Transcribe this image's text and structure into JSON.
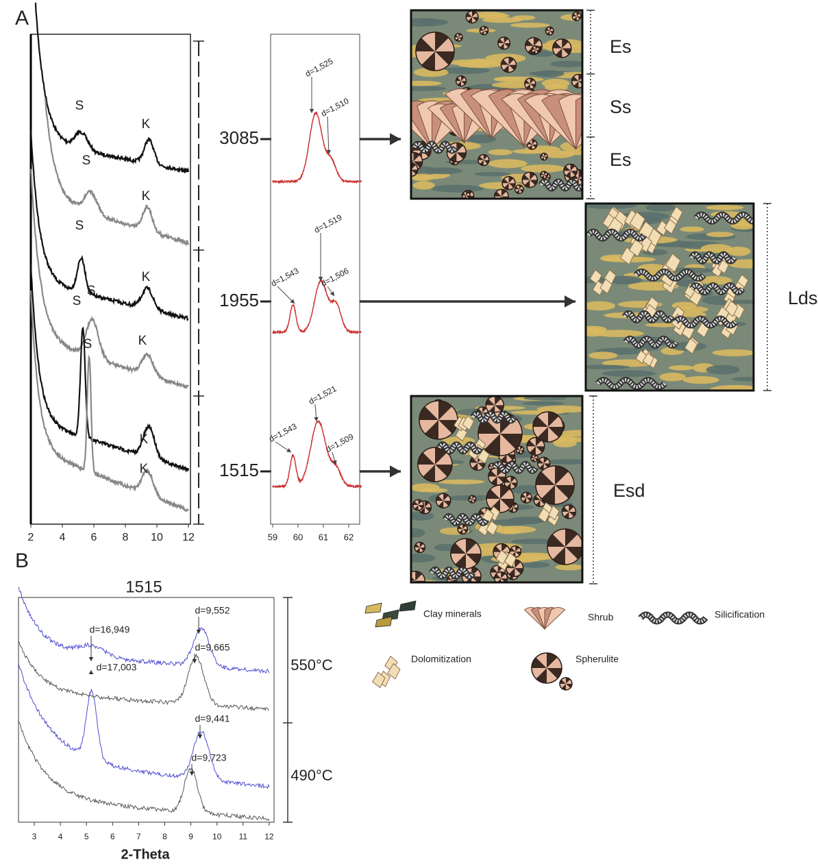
{
  "panel_a": {
    "label": "A",
    "xrd_xticks": [
      2,
      4,
      6,
      8,
      10,
      12
    ],
    "peak_labels": [
      [
        "S",
        "K"
      ],
      [
        "S",
        "K"
      ],
      [
        "S",
        "K"
      ],
      [
        "S",
        "K"
      ],
      [
        "S",
        "K"
      ],
      [
        "S",
        "K"
      ]
    ],
    "depths": [
      3085,
      1955,
      1515
    ],
    "zoom_xticks": [
      59,
      60,
      61,
      62
    ],
    "zoom_annotations": [
      [
        "d=1,525",
        "d=1,510"
      ],
      [
        "d=1,519",
        "d=1,543",
        "d=1,506"
      ],
      [
        "d=1,521",
        "d=1,543",
        "d=1,509"
      ]
    ],
    "facies": [
      [
        "Es",
        "Ss",
        "Es"
      ],
      [
        "Lds"
      ],
      [
        "Esd"
      ]
    ]
  },
  "panel_b": {
    "label": "B",
    "title": "1515",
    "xticks": [
      3,
      4,
      5,
      6,
      7,
      8,
      9,
      10,
      11,
      12
    ],
    "xlabel": "2-Theta",
    "annotations": [
      "d=16,949",
      "d=9,552",
      "d=17,003",
      "d=9,665",
      "d=9,441",
      "d=9,723"
    ],
    "temperatures": [
      "550°C",
      "490°C"
    ]
  },
  "legend": [
    "Clay minerals",
    "Shrub",
    "Silicification",
    "Dolomitization",
    "Spherulite"
  ]
}
